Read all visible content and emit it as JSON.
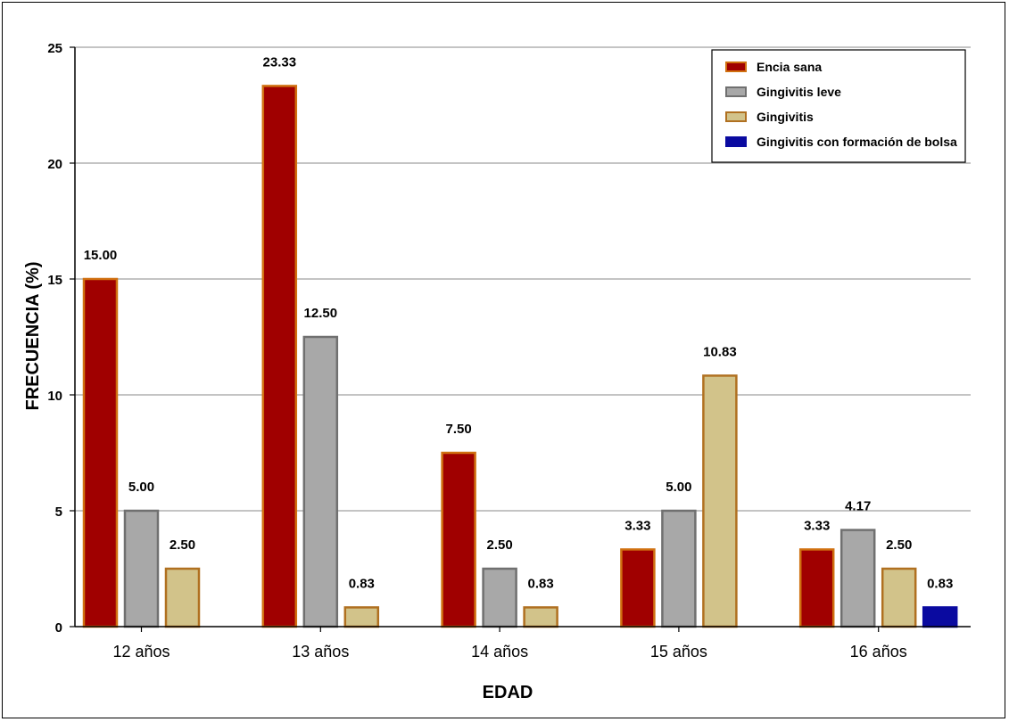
{
  "chart_data": {
    "type": "bar",
    "categories": [
      "12 años",
      "13 años",
      "14 años",
      "15 años",
      "16 años"
    ],
    "series": [
      {
        "name": "Encia sana",
        "color": "#a00000",
        "border": "#d07010",
        "values": [
          15.0,
          23.33,
          7.5,
          3.33,
          3.33
        ]
      },
      {
        "name": "Gingivitis leve",
        "color": "#a8a8a8",
        "border": "#707070",
        "values": [
          5.0,
          12.5,
          2.5,
          5.0,
          4.17
        ]
      },
      {
        "name": "Gingivitis",
        "color": "#d2c38a",
        "border": "#b07020",
        "values": [
          2.5,
          0.83,
          0.83,
          10.83,
          2.5
        ]
      },
      {
        "name": "Gingivitis con formación de bolsa",
        "color": "#0a0aa0",
        "border": "#0a0aa0",
        "values": [
          null,
          null,
          null,
          null,
          0.83
        ]
      }
    ],
    "data_labels": [
      [
        "15.00",
        "23.33",
        "7.50",
        "3.33",
        "3.33"
      ],
      [
        "5.00",
        "12.50",
        "2.50",
        "5.00",
        "4.17"
      ],
      [
        "2.50",
        "0.83",
        "0.83",
        "10.83",
        "2.50"
      ],
      [
        null,
        null,
        null,
        null,
        "0.83"
      ]
    ],
    "xlabel": "EDAD",
    "ylabel": "FRECUENCIA (%)",
    "ylim": [
      0,
      25
    ],
    "yticks": [
      0,
      5,
      10,
      15,
      20,
      25
    ],
    "grid": true,
    "legend_position": "top-right"
  }
}
